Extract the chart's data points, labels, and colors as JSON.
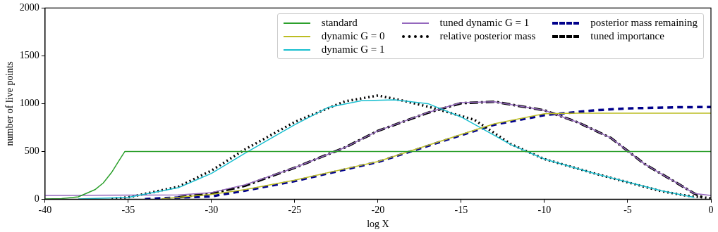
{
  "chart_data": {
    "type": "line",
    "xlabel": "log X",
    "ylabel": "number of live points",
    "xlim": [
      -40,
      0
    ],
    "xticks": [
      -40,
      -35,
      -30,
      -25,
      -20,
      -15,
      -10,
      -5,
      0
    ],
    "ylim": [
      0,
      2000
    ],
    "yticks": [
      0,
      500,
      1000,
      1500,
      2000
    ],
    "grid": false,
    "legend": "top right",
    "marker": "none",
    "series": [
      {
        "name": "standard",
        "color": "#2ca02c",
        "line_style": "solid",
        "x": [
          -40,
          -39,
          -38,
          -37,
          -36.5,
          -36,
          -35.5,
          -35.2,
          0
        ],
        "values": [
          3,
          6,
          25,
          100,
          170,
          280,
          420,
          500,
          500
        ]
      },
      {
        "name": "dynamic G = 0",
        "color": "#bcbd22",
        "line_style": "solid",
        "x": [
          -33,
          -30,
          -28,
          -25,
          -20,
          -15,
          -13,
          -10,
          -8,
          0
        ],
        "values": [
          5,
          50,
          100,
          200,
          395,
          677,
          790,
          895,
          900,
          900
        ]
      },
      {
        "name": "dynamic G = 1",
        "color": "#17becf",
        "line_style": "solid",
        "x": [
          -38,
          -35,
          -32,
          -30,
          -28,
          -25,
          -23,
          -21,
          -19,
          -17,
          -15,
          -12,
          -10,
          -7,
          -5,
          -3,
          -1
        ],
        "values": [
          3,
          20,
          120,
          270,
          480,
          780,
          960,
          1030,
          1040,
          1000,
          860,
          570,
          420,
          270,
          180,
          90,
          20
        ]
      },
      {
        "name": "tuned dynamic G = 1",
        "color": "#9467bd",
        "line_style": "solid",
        "x": [
          -40,
          -32,
          -30,
          -28,
          -25,
          -22,
          -20,
          -17,
          -15,
          -13,
          -10,
          -8,
          -6,
          -4,
          -2,
          -1,
          0
        ],
        "values": [
          40,
          45,
          70,
          150,
          330,
          540,
          715,
          908,
          1010,
          1020,
          930,
          805,
          640,
          370,
          165,
          60,
          40
        ]
      },
      {
        "name": "relative posterior mass",
        "color": "#000000",
        "line_style": "dotted",
        "x": [
          -36,
          -35,
          -32,
          -30,
          -28,
          -25,
          -22,
          -20,
          -18.6,
          -16.8,
          -14.2,
          -12,
          -10,
          -7,
          -5,
          -3,
          -1.5,
          0
        ],
        "values": [
          5,
          20,
          130,
          300,
          520,
          808,
          1023,
          1085,
          1035,
          960,
          830,
          575,
          420,
          270,
          177,
          85,
          38,
          10
        ]
      },
      {
        "name": "posterior mass remaining",
        "color": "#00008b",
        "line_style": "dashed",
        "x": [
          -34,
          -33,
          -30,
          -28,
          -25,
          -20,
          -15,
          -13,
          -10,
          -7,
          -5,
          -2,
          0
        ],
        "values": [
          2,
          10,
          30,
          90,
          190,
          390,
          670,
          780,
          880,
          930,
          950,
          962,
          965
        ]
      },
      {
        "name": "tuned importance",
        "color": "#000000",
        "line_style": "dashdot",
        "x": [
          -32,
          -30,
          -28,
          -25,
          -22,
          -20,
          -17,
          -15,
          -13,
          -10,
          -8,
          -6,
          -4,
          -2,
          -1,
          -0.5
        ],
        "values": [
          20,
          60,
          140,
          330,
          540,
          715,
          905,
          1005,
          1020,
          930,
          805,
          640,
          370,
          165,
          60,
          20
        ]
      }
    ]
  }
}
